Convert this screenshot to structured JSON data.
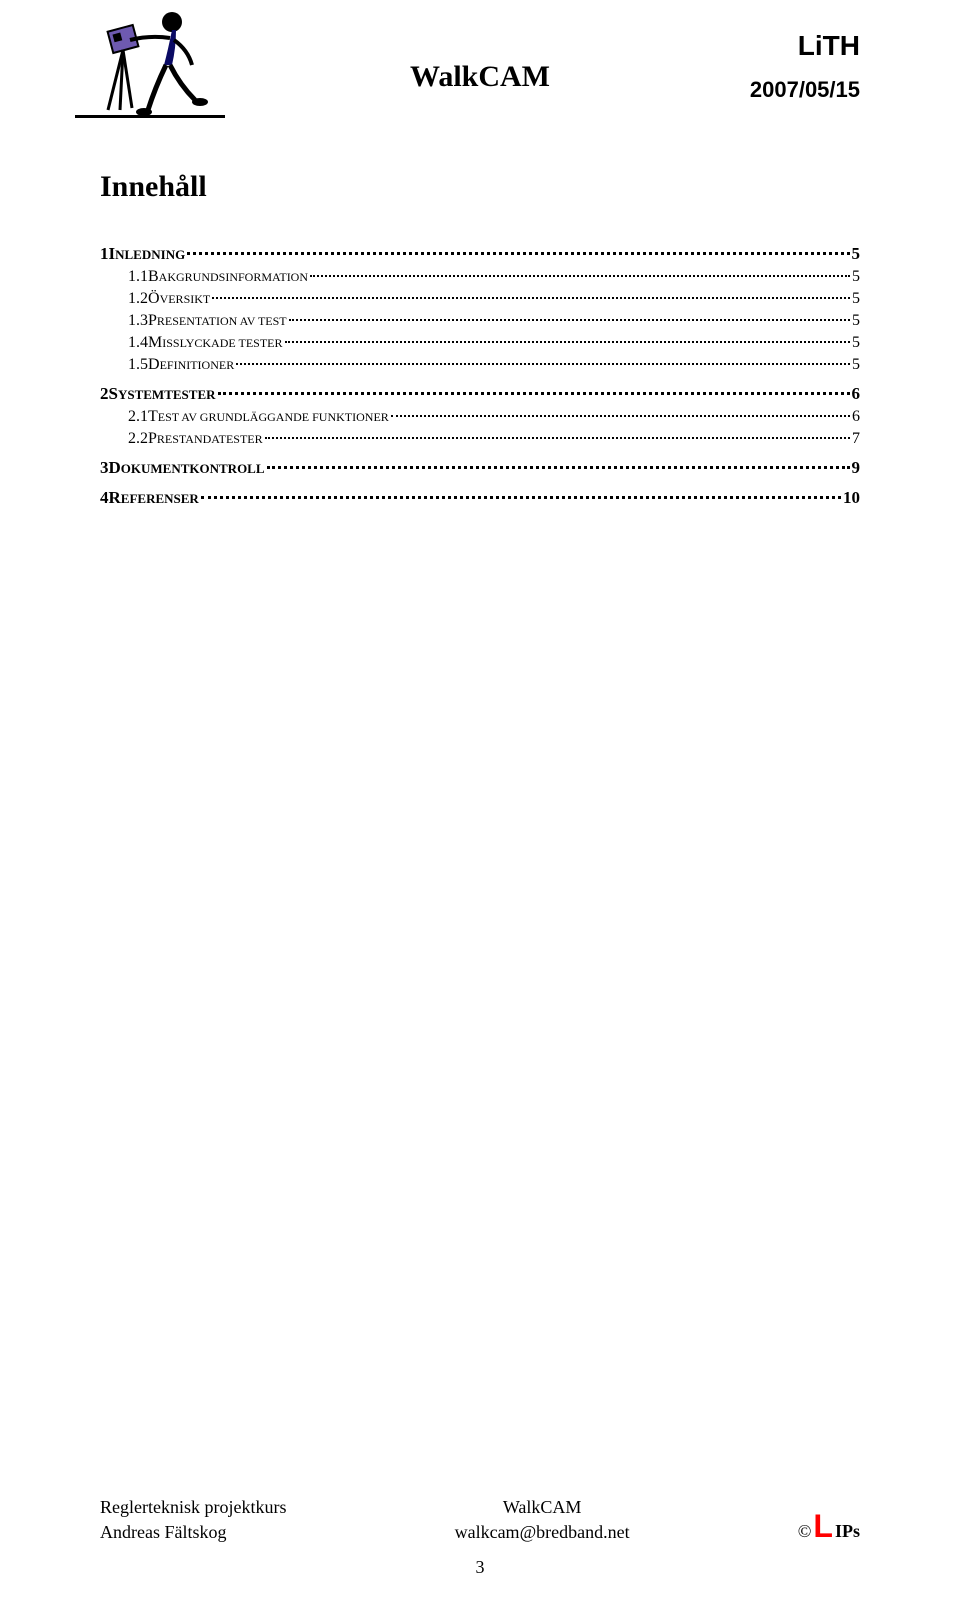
{
  "header": {
    "center_title": "WalkCAM",
    "right_top": "LiTH",
    "right_date": "2007/05/15"
  },
  "content_title": "Innehåll",
  "toc": [
    {
      "type": "main",
      "num": "1",
      "prefix": "I",
      "rest": "NLEDNING",
      "page": "5"
    },
    {
      "type": "sub",
      "num": "1.1",
      "prefix": "B",
      "rest": "AKGRUNDSINFORMATION",
      "page": "5"
    },
    {
      "type": "sub",
      "num": "1.2",
      "prefix": "Ö",
      "rest": "VERSIKT",
      "page": "5"
    },
    {
      "type": "sub",
      "num": "1.3",
      "prefix": "P",
      "rest": "RESENTATION AV TEST",
      "page": "5"
    },
    {
      "type": "sub",
      "num": "1.4",
      "prefix": "M",
      "rest": "ISSLYCKADE TESTER",
      "page": "5"
    },
    {
      "type": "sub",
      "num": "1.5",
      "prefix": "D",
      "rest": "EFINITIONER",
      "page": "5"
    },
    {
      "type": "main",
      "num": "2",
      "prefix": "S",
      "rest": "YSTEMTESTER",
      "page": "6"
    },
    {
      "type": "sub",
      "num": "2.1",
      "prefix": "T",
      "rest": "EST AV GRUNDLÄGGANDE FUNKTIONER",
      "page": "6"
    },
    {
      "type": "sub",
      "num": "2.2",
      "prefix": "P",
      "rest": "RESTANDATESTER",
      "page": "7"
    },
    {
      "type": "main",
      "num": "3",
      "prefix": "D",
      "rest": "OKUMENTKONTROLL",
      "page": "9"
    },
    {
      "type": "main",
      "num": "4",
      "prefix": "R",
      "rest": "EFERENSER",
      "page": "10"
    }
  ],
  "footer": {
    "left_line1": "Reglerteknisk projektkurs",
    "left_line2": "Andreas Fältskog",
    "center_line1": "WalkCAM",
    "center_line2": "walkcam@bredband.net",
    "right_copy": "©",
    "right_l": "L",
    "right_ips": "IPs",
    "page_number": "3"
  },
  "colors": {
    "text": "#000000",
    "background": "#ffffff",
    "lips_red": "#ff0000",
    "figure_purple": "#6e5ab0",
    "figure_black": "#000000",
    "figure_body": "#0a0a64"
  }
}
